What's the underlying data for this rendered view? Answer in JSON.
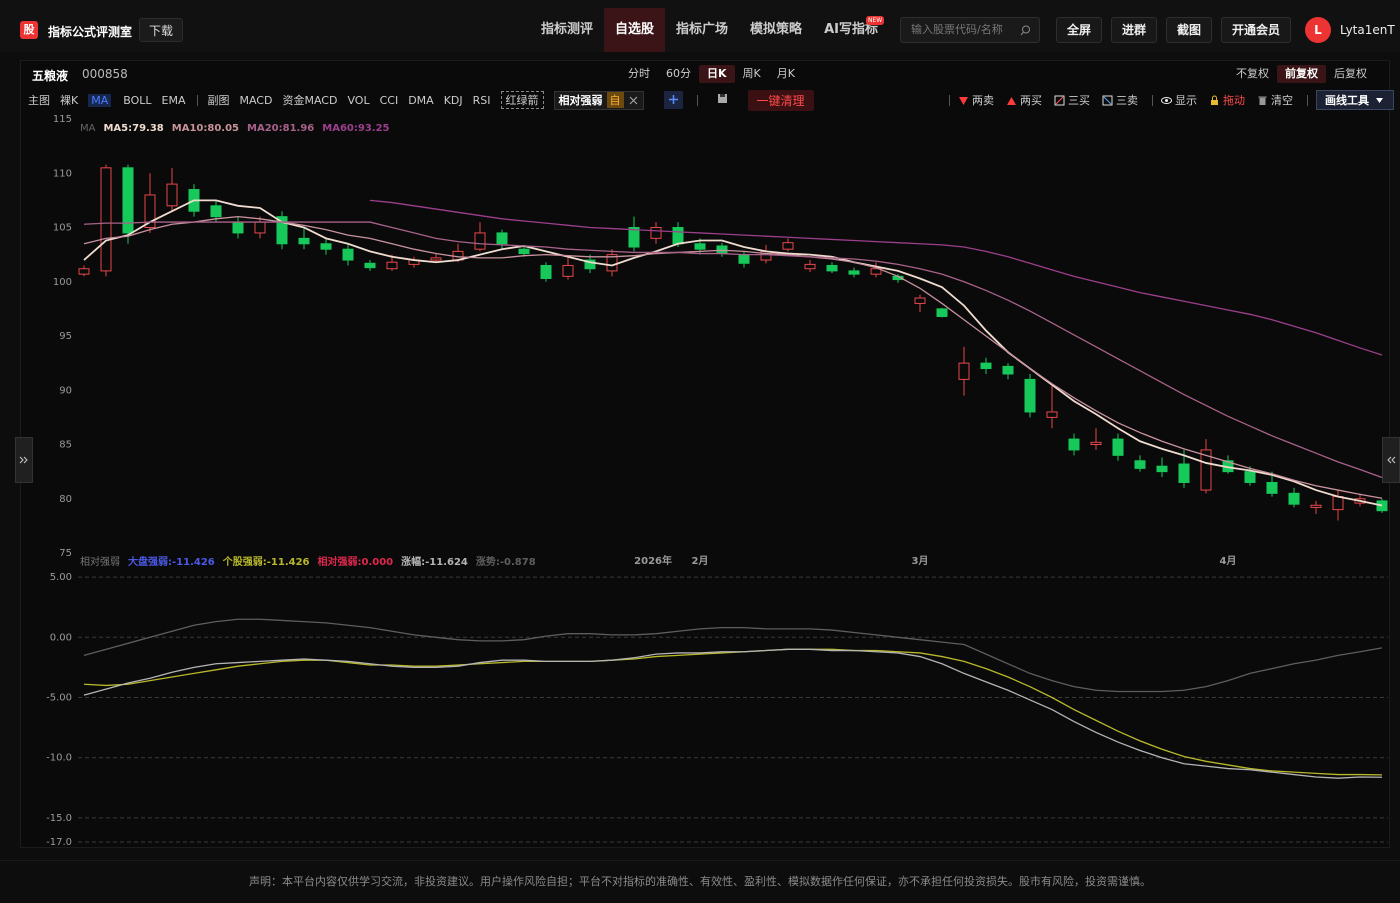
{
  "header": {
    "logo": "股",
    "title": "指标公式评测室",
    "download": "下载",
    "nav": [
      "指标测评",
      "自选股",
      "指标广场",
      "模拟策略",
      "AI写指标"
    ],
    "new_badge": "NEW",
    "search_placeholder": "输入股票代码/名称",
    "buttons": [
      "全屏",
      "进群",
      "截图",
      "开通会员"
    ],
    "avatar": "L",
    "username": "Lyta1enT"
  },
  "stock": {
    "name": "五粮液",
    "code": "000858",
    "periods": [
      "分时",
      "60分",
      "日K",
      "周K",
      "月K"
    ],
    "adjust": [
      "不复权",
      "前复权",
      "后复权"
    ]
  },
  "toolbar": {
    "main_label": "主图",
    "main": [
      "裸K",
      "MA",
      "BOLL",
      "EMA"
    ],
    "sub_label": "副图",
    "sub": [
      "MACD",
      "资金MACD",
      "VOL",
      "CCI",
      "DMA",
      "KDJ",
      "RSI",
      "红绿箭"
    ],
    "active_sub": "相对强弱",
    "active_tag": "自",
    "clear": "一键清理",
    "draw": [
      "两卖",
      "两买",
      "三买",
      "三卖",
      "显示",
      "拖动",
      "清空"
    ],
    "draw_tool": "画线工具"
  },
  "chart_data": [
    {
      "type": "candlestick",
      "legend_title": "MA",
      "up_color": "#e8474b",
      "down_color": "#16c95a",
      "categories": [
        null,
        null,
        null,
        null,
        null,
        null,
        null,
        null,
        null,
        null,
        null,
        null,
        null,
        null,
        null,
        null,
        null,
        null,
        null,
        null,
        null,
        null,
        null,
        null,
        null,
        null,
        null,
        null,
        "2月",
        null,
        null,
        null,
        null,
        null,
        null,
        null,
        null,
        null,
        "3月",
        null,
        null,
        null,
        null,
        null,
        null,
        null,
        null,
        null,
        null,
        null,
        null,
        null,
        "4月",
        null,
        null,
        null,
        null,
        null,
        null,
        null
      ],
      "year_label": "2026年",
      "open": [
        100.7,
        101,
        110.5,
        105,
        107,
        108.5,
        107,
        105.5,
        104.5,
        106,
        104,
        103.5,
        103,
        101.7,
        101.2,
        101.6,
        102,
        102,
        103,
        104.5,
        103,
        101.5,
        100.5,
        102,
        101,
        105,
        104,
        105,
        103.5,
        103.3,
        102.5,
        102,
        103,
        101.2,
        101.5,
        101,
        100.7,
        100.5,
        98,
        97.5,
        91,
        92.5,
        92.2,
        91,
        87.5,
        85.5,
        85,
        85.5,
        83.5,
        83,
        83.2,
        80.8,
        83.5,
        82.5,
        81.5,
        80.5,
        79.2,
        79,
        79.6,
        79.8
      ],
      "high": [
        101.5,
        110.8,
        110.8,
        110,
        110.5,
        109,
        107.5,
        106,
        106,
        106.5,
        105,
        104,
        103.5,
        102,
        102.5,
        102.3,
        102.6,
        103.5,
        105.5,
        104.8,
        103.3,
        101.8,
        102.2,
        102.5,
        103,
        106,
        105.5,
        105.5,
        104,
        103.6,
        102.8,
        103.4,
        104,
        102,
        101.8,
        101.3,
        101.8,
        100.7,
        98.8,
        97.6,
        94,
        93,
        92.5,
        91.5,
        90.5,
        86,
        86.5,
        86,
        84,
        83.8,
        84.5,
        85.5,
        84,
        83,
        82.5,
        81,
        79.8,
        80.8,
        80.5,
        80
      ],
      "low": [
        100.5,
        100.5,
        103.5,
        104.5,
        106.5,
        106,
        105.5,
        104,
        104,
        103,
        103,
        102.5,
        101.5,
        101,
        101,
        101.3,
        101.8,
        101.8,
        102.8,
        103,
        102.3,
        100,
        100.2,
        100.8,
        100.5,
        102.8,
        103.5,
        103.2,
        102.5,
        102.3,
        101.3,
        101.7,
        102.8,
        100.9,
        100.8,
        100.4,
        100.4,
        99.9,
        97.2,
        96.7,
        89.5,
        91.5,
        91,
        87.5,
        86.5,
        84,
        84.5,
        83.5,
        82.5,
        82,
        81,
        80.5,
        82.3,
        81.2,
        80.2,
        79.2,
        78.6,
        78,
        79.3,
        78.7
      ],
      "close": [
        101.2,
        110.5,
        104.5,
        108,
        109,
        106.5,
        106,
        104.5,
        105.5,
        103.5,
        103.5,
        103,
        102,
        101.3,
        101.8,
        102,
        102.2,
        102.8,
        104.5,
        103.5,
        102.6,
        100.3,
        101.5,
        101.2,
        102.5,
        103.2,
        105,
        103.5,
        103,
        102.6,
        101.7,
        102.8,
        103.6,
        101.6,
        101,
        100.7,
        101.2,
        100.2,
        98.5,
        96.8,
        92.5,
        92,
        91.5,
        88,
        88,
        84.5,
        85.2,
        84,
        82.8,
        82.5,
        81.5,
        84.5,
        82.5,
        81.5,
        80.5,
        79.5,
        79.4,
        80.2,
        80,
        78.9
      ],
      "series": [
        {
          "name": "MA5:79.38",
          "color": "#f0dccf",
          "values": [
            102,
            103.8,
            104.3,
            105.5,
            106.5,
            107.5,
            107.5,
            107,
            106.8,
            105.5,
            105,
            104,
            103.5,
            102.8,
            102.3,
            102,
            101.8,
            102,
            102.5,
            103,
            103.3,
            102.8,
            102.3,
            101.8,
            101.5,
            102.2,
            102.8,
            103.5,
            103.8,
            103.8,
            103.2,
            102.8,
            102.6,
            102.5,
            102.3,
            101.8,
            101.4,
            101,
            100.3,
            99.5,
            97.8,
            95.5,
            93.5,
            92,
            90.5,
            89,
            87.8,
            86.5,
            85.3,
            84.6,
            84,
            83.3,
            82.9,
            82.6,
            82.2,
            81.6,
            80.8,
            80.2,
            79.8,
            79.38
          ]
        },
        {
          "name": "MA10:80.05",
          "color": "#c8929e",
          "values": [
            103.5,
            104,
            104.2,
            104.8,
            105.3,
            105.5,
            105.8,
            106,
            105.8,
            105.5,
            105.2,
            104.8,
            104.3,
            104,
            103.5,
            103,
            102.6,
            102.3,
            102.2,
            102.2,
            102.4,
            102.5,
            102.4,
            102.3,
            102.3,
            102.4,
            102.6,
            102.7,
            102.8,
            102.9,
            102.8,
            102.6,
            102.5,
            102.3,
            102.1,
            101.8,
            101.3,
            100.5,
            99.4,
            98,
            96.5,
            95,
            93.5,
            92,
            90.6,
            89.3,
            88.1,
            87,
            86.1,
            85.3,
            84.6,
            84,
            83.4,
            82.8,
            82.3,
            81.7,
            81.2,
            80.8,
            80.4,
            80.05
          ]
        },
        {
          "name": "MA20:81.96",
          "color": "#a8628a",
          "values": [
            105.3,
            105.4,
            105.4,
            105.5,
            105.5,
            105.5,
            105.5,
            105.5,
            105.5,
            105.5,
            105.5,
            105.5,
            105.5,
            105.5,
            105,
            104.5,
            104,
            103.7,
            103.5,
            103.4,
            103.3,
            103.2,
            103,
            102.9,
            102.8,
            102.7,
            102.7,
            102.7,
            102.6,
            102.6,
            102.5,
            102.5,
            102.4,
            102.3,
            102.2,
            102.1,
            101.9,
            101.6,
            101.2,
            100.7,
            100,
            99.2,
            98.3,
            97.3,
            96.2,
            95.1,
            94,
            92.9,
            91.8,
            90.7,
            89.6,
            88.6,
            87.6,
            86.7,
            85.8,
            85,
            84.2,
            83.4,
            82.7,
            81.96
          ]
        },
        {
          "name": "MA60:93.25",
          "color": "#9c3f8c",
          "values": [
            null,
            null,
            null,
            null,
            null,
            null,
            null,
            null,
            null,
            null,
            null,
            null,
            null,
            107.5,
            107.3,
            107,
            106.7,
            106.4,
            106.1,
            105.8,
            105.6,
            105.4,
            105.2,
            105,
            104.9,
            104.8,
            104.7,
            104.6,
            104.5,
            104.4,
            104.3,
            104.2,
            104.1,
            104,
            103.9,
            103.8,
            103.7,
            103.6,
            103.5,
            103.4,
            103.2,
            102.8,
            102.3,
            101.7,
            101.1,
            100.5,
            100,
            99.5,
            99,
            98.6,
            98.2,
            97.8,
            97.4,
            97,
            96.5,
            95.9,
            95.3,
            94.6,
            93.9,
            93.25
          ]
        }
      ],
      "ylim": [
        75,
        115
      ],
      "yticks": [
        115,
        110,
        105,
        100,
        95,
        90,
        85,
        80,
        75
      ],
      "grid": false
    },
    {
      "type": "line",
      "title": "相对强弱",
      "ylim": [
        -17,
        7
      ],
      "yticks": [
        {
          "value": 5,
          "label": "5.00"
        },
        {
          "value": 0,
          "label": "0.00"
        },
        {
          "value": -5,
          "label": "-5.00"
        },
        {
          "value": -10,
          "label": "-10.0"
        },
        {
          "value": -15,
          "label": "-15.0"
        },
        {
          "value": -17,
          "label": "-17.0"
        }
      ],
      "grid": true,
      "series": [
        {
          "name": "大盘强弱:-11.426",
          "color": "#4a5ae6"
        },
        {
          "name": "个股强弱:-11.426",
          "color": "#b8b82c",
          "values": [
            -3.9,
            -4,
            -3.9,
            -3.6,
            -3.3,
            -3,
            -2.7,
            -2.4,
            -2.2,
            -2,
            -1.9,
            -1.9,
            -2.1,
            -2.3,
            -2.3,
            -2.4,
            -2.4,
            -2.3,
            -2.2,
            -2.1,
            -2,
            -2,
            -2,
            -2,
            -1.9,
            -1.8,
            -1.6,
            -1.5,
            -1.4,
            -1.3,
            -1.2,
            -1.1,
            -1,
            -1,
            -1,
            -1.1,
            -1.1,
            -1.2,
            -1.3,
            -1.6,
            -2,
            -2.6,
            -3.3,
            -4.1,
            -5,
            -6,
            -6.9,
            -7.8,
            -8.6,
            -9.3,
            -9.9,
            -10.3,
            -10.6,
            -10.9,
            -11.1,
            -11.2,
            -11.3,
            -11.4,
            -11.4,
            -11.426
          ]
        },
        {
          "name": "相对强弱:0.000",
          "color": "#e0284f"
        },
        {
          "name": "涨幅:-11.624",
          "color": "#b4b4b4",
          "values": [
            -4.8,
            -4.3,
            -3.8,
            -3.4,
            -2.9,
            -2.5,
            -2.2,
            -2.1,
            -2,
            -1.9,
            -1.8,
            -1.9,
            -2,
            -2.2,
            -2.4,
            -2.5,
            -2.5,
            -2.4,
            -2.1,
            -1.9,
            -1.9,
            -2,
            -2,
            -2,
            -1.9,
            -1.7,
            -1.4,
            -1.3,
            -1.3,
            -1.2,
            -1.2,
            -1.1,
            -1,
            -1,
            -1.1,
            -1.1,
            -1.2,
            -1.3,
            -1.6,
            -2.2,
            -3,
            -3.7,
            -4.4,
            -5.2,
            -6,
            -7,
            -7.9,
            -8.7,
            -9.4,
            -10,
            -10.5,
            -10.7,
            -10.9,
            -11,
            -11.2,
            -11.4,
            -11.6,
            -11.7,
            -11.6,
            -11.624
          ]
        },
        {
          "name": "涨势:-0.878",
          "color": "#5e5e5e",
          "values": [
            -1.5,
            -1,
            -0.5,
            0,
            0.5,
            1,
            1.3,
            1.5,
            1.5,
            1.4,
            1.3,
            1.2,
            1,
            0.8,
            0.5,
            0.2,
            0,
            -0.2,
            -0.3,
            -0.3,
            -0.2,
            0.1,
            0.3,
            0.3,
            0.2,
            0.2,
            0.3,
            0.5,
            0.7,
            0.8,
            0.8,
            0.7,
            0.7,
            0.7,
            0.6,
            0.4,
            0.2,
            0,
            -0.2,
            -0.4,
            -0.6,
            -1.4,
            -2.2,
            -3,
            -3.6,
            -4.1,
            -4.4,
            -4.5,
            -4.5,
            -4.5,
            -4.4,
            -4.1,
            -3.6,
            -3,
            -2.6,
            -2.2,
            -1.9,
            -1.5,
            -1.2,
            -0.878
          ]
        }
      ]
    }
  ],
  "footer": "声明：本平台内容仅供学习交流，非投资建议。用户操作风险自担；平台不对指标的准确性、有效性、盈利性、模拟数据作任何保证，亦不承担任何投资损失。股市有风险，投资需谨慎。"
}
